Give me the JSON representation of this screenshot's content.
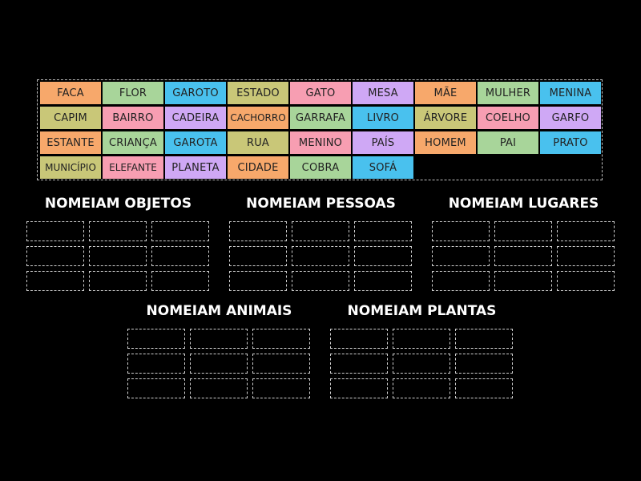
{
  "colors": {
    "background": "#000000",
    "orange": "#f7a86b",
    "green": "#a8d59a",
    "blue": "#49c1ee",
    "olive": "#c9c778",
    "pink": "#f79eb2",
    "purple": "#cfa8f5"
  },
  "tiles": [
    {
      "label": "FACA",
      "color": "orange"
    },
    {
      "label": "FLOR",
      "color": "green"
    },
    {
      "label": "GAROTO",
      "color": "blue"
    },
    {
      "label": "ESTADO",
      "color": "olive"
    },
    {
      "label": "GATO",
      "color": "pink"
    },
    {
      "label": "MESA",
      "color": "purple"
    },
    {
      "label": "MÃE",
      "color": "orange"
    },
    {
      "label": "MULHER",
      "color": "green"
    },
    {
      "label": "MENINA",
      "color": "blue"
    },
    {
      "label": "CAPIM",
      "color": "olive"
    },
    {
      "label": "BAIRRO",
      "color": "pink"
    },
    {
      "label": "CADEIRA",
      "color": "purple"
    },
    {
      "label": "CACHORRO",
      "color": "orange"
    },
    {
      "label": "GARRAFA",
      "color": "green"
    },
    {
      "label": "LIVRO",
      "color": "blue"
    },
    {
      "label": "ÁRVORE",
      "color": "olive"
    },
    {
      "label": "COELHO",
      "color": "pink"
    },
    {
      "label": "GARFO",
      "color": "purple"
    },
    {
      "label": "ESTANTE",
      "color": "orange"
    },
    {
      "label": "CRIANÇA",
      "color": "green"
    },
    {
      "label": "GAROTA",
      "color": "blue"
    },
    {
      "label": "RUA",
      "color": "olive"
    },
    {
      "label": "MENINO",
      "color": "pink"
    },
    {
      "label": "PAÍS",
      "color": "purple"
    },
    {
      "label": "HOMEM",
      "color": "orange"
    },
    {
      "label": "PAI",
      "color": "green"
    },
    {
      "label": "PRATO",
      "color": "blue"
    },
    {
      "label": "MUNICÍPIO",
      "color": "olive"
    },
    {
      "label": "ELEFANTE",
      "color": "pink"
    },
    {
      "label": "PLANETA",
      "color": "purple"
    },
    {
      "label": "CIDADE",
      "color": "orange"
    },
    {
      "label": "COBRA",
      "color": "green"
    },
    {
      "label": "SOFÁ",
      "color": "blue"
    }
  ],
  "groups": [
    {
      "title": "NOMEIAM OBJETOS"
    },
    {
      "title": "NOMEIAM PESSOAS"
    },
    {
      "title": "NOMEIAM LUGARES"
    },
    {
      "title": "NOMEIAM ANIMAIS"
    },
    {
      "title": "NOMEIAM PLANTAS"
    }
  ]
}
